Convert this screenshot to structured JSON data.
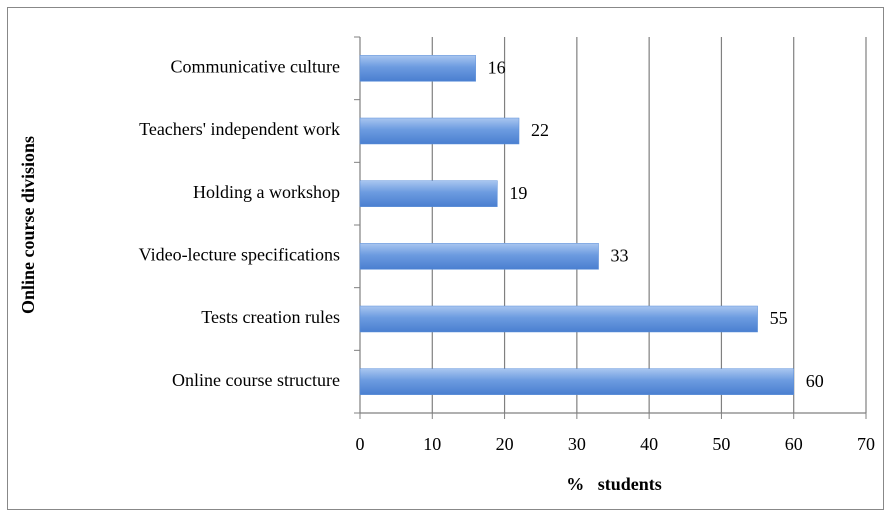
{
  "chart_data": {
    "type": "hbar",
    "categories": [
      "Communicative culture",
      "Teachers' independent work",
      "Holding a workshop",
      "Video-lecture specifications",
      "Tests creation rules",
      "Online course structure"
    ],
    "values": [
      16,
      22,
      19,
      33,
      55,
      60
    ],
    "color": "#5b8fd9",
    "xlim": [
      0,
      70
    ],
    "xticks": [
      0,
      10,
      20,
      30,
      40,
      50,
      60,
      70
    ],
    "xlabel": "%   students",
    "ylabel": "Online course divisions",
    "grid": true
  }
}
